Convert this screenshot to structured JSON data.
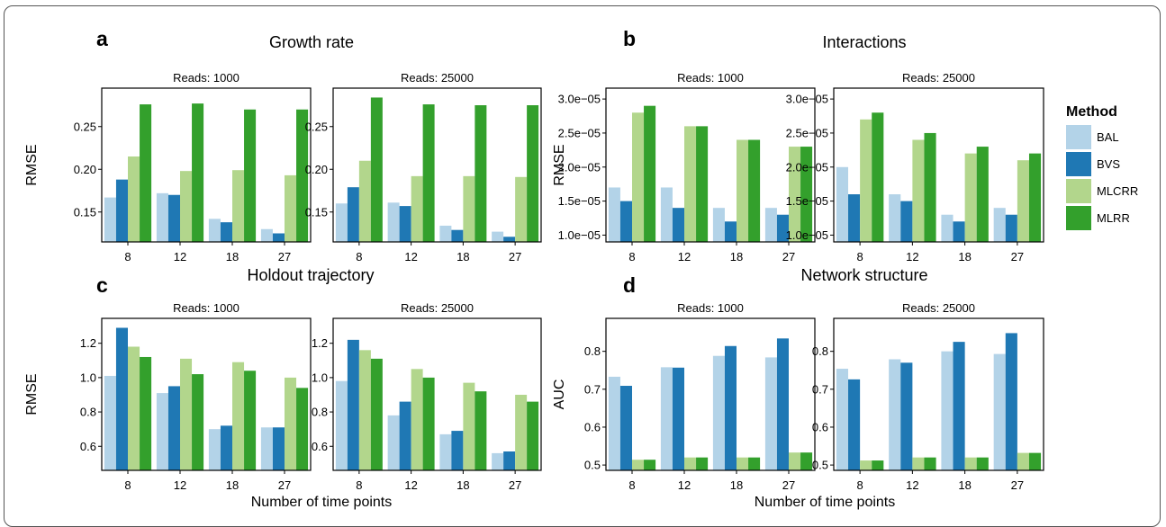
{
  "x_axis_label": "Number of time points",
  "legend": {
    "title": "Method",
    "items": [
      {
        "label": "BAL",
        "color": "#b3d3e8"
      },
      {
        "label": "BVS",
        "color": "#1f78b4"
      },
      {
        "label": "MLCRR",
        "color": "#b2d68c"
      },
      {
        "label": "MLRR",
        "color": "#33a02c"
      }
    ]
  },
  "chart_data": [
    {
      "panel": "a",
      "title": "Growth rate",
      "type": "bar",
      "ylabel": "RMSE",
      "categories": [
        "8",
        "12",
        "18",
        "27"
      ],
      "ylim": [
        0.115,
        0.295
      ],
      "yticks": [
        0.15,
        0.2,
        0.25
      ],
      "yticklabels": [
        "0.15",
        "0.20",
        "0.25"
      ],
      "facets": [
        {
          "strip": "Reads: 1000",
          "series": [
            {
              "name": "BAL",
              "values": [
                0.167,
                0.172,
                0.142,
                0.13
              ]
            },
            {
              "name": "BVS",
              "values": [
                0.188,
                0.17,
                0.138,
                0.125
              ]
            },
            {
              "name": "MLCRR",
              "values": [
                0.215,
                0.198,
                0.199,
                0.193
              ]
            },
            {
              "name": "MLRR",
              "values": [
                0.276,
                0.277,
                0.27,
                0.27
              ]
            }
          ]
        },
        {
          "strip": "Reads: 25000",
          "series": [
            {
              "name": "BAL",
              "values": [
                0.16,
                0.161,
                0.134,
                0.127
              ]
            },
            {
              "name": "BVS",
              "values": [
                0.179,
                0.157,
                0.129,
                0.121
              ]
            },
            {
              "name": "MLCRR",
              "values": [
                0.21,
                0.192,
                0.192,
                0.191
              ]
            },
            {
              "name": "MLRR",
              "values": [
                0.284,
                0.276,
                0.275,
                0.275
              ]
            }
          ]
        }
      ]
    },
    {
      "panel": "b",
      "title": "Interactions",
      "type": "bar",
      "ylabel": "RMSE",
      "categories": [
        "8",
        "12",
        "18",
        "27"
      ],
      "ylim": [
        9e-06,
        3.16e-05
      ],
      "yticks": [
        1e-05,
        1.5e-05,
        2e-05,
        2.5e-05,
        3e-05
      ],
      "yticklabels": [
        "1.0e−05",
        "1.5e−05",
        "2.0e−05",
        "2.5e−05",
        "3.0e−05"
      ],
      "facets": [
        {
          "strip": "Reads: 1000",
          "series": [
            {
              "name": "BAL",
              "values": [
                1.7e-05,
                1.7e-05,
                1.4e-05,
                1.4e-05
              ]
            },
            {
              "name": "BVS",
              "values": [
                1.5e-05,
                1.4e-05,
                1.2e-05,
                1.3e-05
              ]
            },
            {
              "name": "MLCRR",
              "values": [
                2.8e-05,
                2.6e-05,
                2.4e-05,
                2.3e-05
              ]
            },
            {
              "name": "MLRR",
              "values": [
                2.9e-05,
                2.6e-05,
                2.4e-05,
                2.3e-05
              ]
            }
          ]
        },
        {
          "strip": "Reads: 25000",
          "series": [
            {
              "name": "BAL",
              "values": [
                2e-05,
                1.6e-05,
                1.3e-05,
                1.4e-05
              ]
            },
            {
              "name": "BVS",
              "values": [
                1.6e-05,
                1.5e-05,
                1.2e-05,
                1.3e-05
              ]
            },
            {
              "name": "MLCRR",
              "values": [
                2.7e-05,
                2.4e-05,
                2.2e-05,
                2.1e-05
              ]
            },
            {
              "name": "MLRR",
              "values": [
                2.8e-05,
                2.5e-05,
                2.3e-05,
                2.2e-05
              ]
            }
          ]
        }
      ]
    },
    {
      "panel": "c",
      "title": "Holdout trajectory",
      "type": "bar",
      "ylabel": "RMSE",
      "xlabel": "Number of time points",
      "categories": [
        "8",
        "12",
        "18",
        "27"
      ],
      "ylim": [
        0.46,
        1.345
      ],
      "yticks": [
        0.6,
        0.8,
        1.0,
        1.2
      ],
      "yticklabels": [
        "0.6",
        "0.8",
        "1.0",
        "1.2"
      ],
      "facets": [
        {
          "strip": "Reads: 1000",
          "series": [
            {
              "name": "BAL",
              "values": [
                1.01,
                0.91,
                0.7,
                0.71
              ]
            },
            {
              "name": "BVS",
              "values": [
                1.29,
                0.95,
                0.72,
                0.71
              ]
            },
            {
              "name": "MLCRR",
              "values": [
                1.18,
                1.11,
                1.09,
                1.0
              ]
            },
            {
              "name": "MLRR",
              "values": [
                1.12,
                1.02,
                1.04,
                0.94
              ]
            }
          ]
        },
        {
          "strip": "Reads: 25000",
          "series": [
            {
              "name": "BAL",
              "values": [
                0.98,
                0.78,
                0.67,
                0.56
              ]
            },
            {
              "name": "BVS",
              "values": [
                1.22,
                0.86,
                0.69,
                0.57
              ]
            },
            {
              "name": "MLCRR",
              "values": [
                1.16,
                1.05,
                0.97,
                0.9
              ]
            },
            {
              "name": "MLRR",
              "values": [
                1.11,
                1.0,
                0.92,
                0.86
              ]
            }
          ]
        }
      ]
    },
    {
      "panel": "d",
      "title": "Network structure",
      "type": "bar",
      "ylabel": "AUC",
      "xlabel": "Number of time points",
      "categories": [
        "8",
        "12",
        "18",
        "27"
      ],
      "ylim": [
        0.486,
        0.887
      ],
      "yticks": [
        0.5,
        0.6,
        0.7,
        0.8
      ],
      "yticklabels": [
        "0.5",
        "0.6",
        "0.7",
        "0.8"
      ],
      "facets": [
        {
          "strip": "Reads: 1000",
          "series": [
            {
              "name": "BAL",
              "values": [
                0.733,
                0.758,
                0.788,
                0.784
              ]
            },
            {
              "name": "BVS",
              "values": [
                0.709,
                0.757,
                0.814,
                0.834
              ]
            },
            {
              "name": "MLCRR",
              "values": [
                0.514,
                0.52,
                0.52,
                0.533
              ]
            },
            {
              "name": "MLRR",
              "values": [
                0.514,
                0.52,
                0.52,
                0.533
              ]
            }
          ]
        },
        {
          "strip": "Reads: 25000",
          "series": [
            {
              "name": "BAL",
              "values": [
                0.754,
                0.779,
                0.8,
                0.793
              ]
            },
            {
              "name": "BVS",
              "values": [
                0.726,
                0.77,
                0.825,
                0.848
              ]
            },
            {
              "name": "MLCRR",
              "values": [
                0.512,
                0.52,
                0.52,
                0.532
              ]
            },
            {
              "name": "MLRR",
              "values": [
                0.512,
                0.52,
                0.52,
                0.532
              ]
            }
          ]
        }
      ]
    }
  ]
}
